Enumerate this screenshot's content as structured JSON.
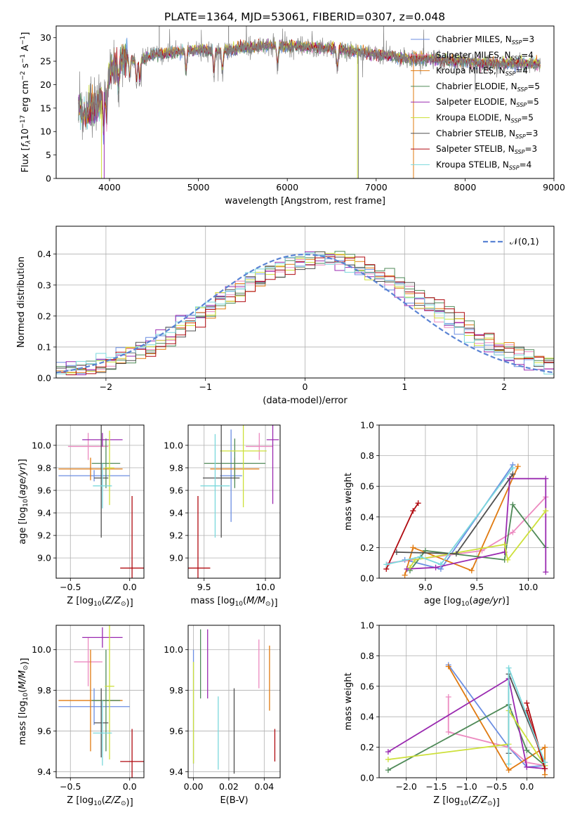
{
  "figure_title": "PLATE=1364, MJD=53061, FIBERID=0307, z=0.048",
  "model_colors": [
    "#6b8ee2",
    "#ec8ac0",
    "#e07a10",
    "#4f8a58",
    "#9a2ab0",
    "#cde03a",
    "#505050",
    "#b00a10",
    "#7ad8dc"
  ],
  "legend": [
    "Chabrier MILES, N_SSP=3",
    "Salpeter MILES, N_SSP=4",
    "Kroupa MILES, N_SSP=4",
    "Chabrier ELODIE, N_SSP=5",
    "Salpeter ELODIE, N_SSP=5",
    "Kroupa ELODIE, N_SSP=5",
    "Chabrier STELIB, N_SSP=3",
    "Salpeter STELIB, N_SSP=3",
    "Kroupa STELIB, N_SSP=4"
  ],
  "chart_data": [
    {
      "id": "spectrum",
      "type": "line",
      "xlabel": "wavelength [Angstrom, rest frame]",
      "ylabel": "Flux [fλ10^-17 erg cm^-2 s^-1 A^-1]",
      "xlim": [
        3400,
        9000
      ],
      "ylim": [
        0,
        32.5
      ],
      "xticks": [
        4000,
        5000,
        6000,
        7000,
        8000,
        9000
      ],
      "yticks": [
        0,
        5,
        10,
        15,
        20,
        25,
        30
      ],
      "legend_position": "top-right",
      "data_envelope": {
        "wavelength": [
          3650,
          3700,
          3750,
          3800,
          3850,
          3900,
          3950,
          4000,
          4100,
          4200,
          4300,
          4400,
          4500,
          4600,
          4800,
          5000,
          5200,
          5400,
          5600,
          5800,
          6000,
          6200,
          6400,
          6600,
          6800,
          7000,
          7200,
          7400,
          7600,
          7800,
          8000,
          8200,
          8400,
          8600,
          8800
        ],
        "flux": [
          16,
          13,
          14,
          15,
          14.5,
          16,
          19,
          23,
          25,
          26,
          25,
          25.5,
          26.5,
          26.5,
          27,
          27.5,
          27,
          27.5,
          28,
          28.2,
          28.2,
          28,
          27.8,
          27.5,
          27,
          26.5,
          26,
          25.5,
          25.5,
          25,
          25,
          24.5,
          24.5,
          24.5,
          24.5
        ]
      }
    },
    {
      "id": "residual-histogram",
      "type": "histogram",
      "xlabel": "(data-model)/error",
      "ylabel": "Normed distribution",
      "xlim": [
        -2.5,
        2.5
      ],
      "ylim": [
        0,
        0.49
      ],
      "xticks": [
        -2,
        -1,
        0,
        1,
        2
      ],
      "yticks": [
        0.0,
        0.1,
        0.2,
        0.3,
        0.4
      ],
      "legend": "𝒩(0,1)",
      "legend_position": "top-right",
      "bin_width": 0.1,
      "reference_curve": "normal(0,1)"
    },
    {
      "id": "age-vs-Z",
      "type": "errorbar",
      "xlabel": "Z [log10(Z/Z⊙)]",
      "ylabel": "age  [log10(age/yr)]",
      "xlim": [
        -0.62,
        0.12
      ],
      "ylim": [
        8.82,
        10.18
      ],
      "xticks": [
        -0.5,
        0.0
      ],
      "yticks": [
        9.0,
        9.2,
        9.4,
        9.6,
        9.8,
        10.0
      ],
      "points": [
        {
          "x": -0.3,
          "y": 9.73,
          "xerr": 0.3,
          "yerr": 0.05
        },
        {
          "x": -0.35,
          "y": 9.99,
          "xerr": 0.17,
          "yerr": 0.12
        },
        {
          "x": -0.33,
          "y": 9.79,
          "xerr": 0.27,
          "yerr": 0.1
        },
        {
          "x": -0.2,
          "y": 9.84,
          "xerr": 0.12,
          "yerr": 0.22
        },
        {
          "x": -0.23,
          "y": 10.05,
          "xerr": 0.17,
          "yerr": 0.06
        },
        {
          "x": -0.17,
          "y": 9.8,
          "xerr": 0.04,
          "yerr": 0.33
        },
        {
          "x": -0.24,
          "y": 9.71,
          "xerr": 0.06,
          "yerr": 0.53
        },
        {
          "x": 0.02,
          "y": 8.91,
          "xerr": 0.1,
          "yerr": 0.64
        },
        {
          "x": -0.23,
          "y": 9.64,
          "xerr": 0.08,
          "yerr": 0.2
        }
      ]
    },
    {
      "id": "age-vs-mass",
      "type": "errorbar",
      "xlabel": "mass [log10(M/M⊙)]",
      "ylabel": "",
      "xlim": [
        9.37,
        10.12
      ],
      "ylim": [
        8.82,
        10.18
      ],
      "xticks": [
        9.5,
        10.0
      ],
      "yticks": [
        9.0,
        9.2,
        9.4,
        9.6,
        9.8,
        10.0
      ],
      "points": [
        {
          "x": 9.72,
          "y": 9.73,
          "xerr": 0.09,
          "yerr": 0.41
        },
        {
          "x": 9.95,
          "y": 9.99,
          "xerr": 0.11,
          "yerr": 0.12
        },
        {
          "x": 9.75,
          "y": 9.79,
          "xerr": 0.2,
          "yerr": 0.1
        },
        {
          "x": 9.75,
          "y": 9.84,
          "xerr": 0.25,
          "yerr": 0.22
        },
        {
          "x": 10.06,
          "y": 10.05,
          "xerr": 0.05,
          "yerr": 0.57
        },
        {
          "x": 9.82,
          "y": 9.95,
          "xerr": 0.19,
          "yerr": 0.5
        },
        {
          "x": 9.64,
          "y": 9.71,
          "xerr": 0.15,
          "yerr": 0.53
        },
        {
          "x": 9.45,
          "y": 8.91,
          "xerr": 0.1,
          "yerr": 0.64
        },
        {
          "x": 9.59,
          "y": 9.64,
          "xerr": 0.12,
          "yerr": 0.46
        }
      ]
    },
    {
      "id": "massweight-vs-age",
      "type": "line",
      "xlabel": "age  [log10(age/yr)]",
      "ylabel": "mass weight",
      "xlim": [
        8.55,
        10.25
      ],
      "ylim": [
        0,
        1.0
      ],
      "xticks": [
        9.0,
        9.5,
        10.0
      ],
      "yticks": [
        0.0,
        0.2,
        0.4,
        0.6,
        0.8,
        1.0
      ],
      "grid": true,
      "series": [
        {
          "x": [
            8.8,
            9.15,
            9.85
          ],
          "y": [
            0.12,
            0.06,
            0.74
          ]
        },
        {
          "x": [
            8.65,
            9.55,
            9.85,
            10.17
          ],
          "y": [
            0.1,
            0.18,
            0.3,
            0.53
          ]
        },
        {
          "x": [
            8.8,
            8.88,
            9.45,
            9.9
          ],
          "y": [
            0.02,
            0.2,
            0.05,
            0.73
          ]
        },
        {
          "x": [
            8.85,
            9.0,
            9.77,
            9.85,
            10.17
          ],
          "y": [
            0.05,
            0.18,
            0.12,
            0.48,
            0.2
          ]
        },
        {
          "x": [
            8.82,
            9.1,
            9.77,
            9.82,
            10.17,
            10.17
          ],
          "y": [
            0.06,
            0.07,
            0.17,
            0.65,
            0.65,
            0.04
          ]
        },
        {
          "x": [
            8.85,
            8.9,
            9.77,
            9.8,
            10.17
          ],
          "y": [
            0.07,
            0.12,
            0.22,
            0.12,
            0.44
          ]
        },
        {
          "x": [
            8.72,
            9.3,
            9.85
          ],
          "y": [
            0.17,
            0.16,
            0.68
          ]
        },
        {
          "x": [
            8.62,
            8.88,
            8.93
          ],
          "y": [
            0.06,
            0.44,
            0.49
          ]
        },
        {
          "x": [
            8.62,
            8.95,
            9.15,
            9.85
          ],
          "y": [
            0.09,
            0.14,
            0.09,
            0.72
          ]
        }
      ]
    },
    {
      "id": "mass-vs-Z",
      "type": "errorbar",
      "xlabel": "Z [log10(Z/Z⊙)]",
      "ylabel": "mass [log10(M/M⊙)]",
      "xlim": [
        -0.62,
        0.12
      ],
      "ylim": [
        9.37,
        10.12
      ],
      "xticks": [
        -0.5,
        0.0
      ],
      "yticks": [
        9.4,
        9.6,
        9.8,
        10.0
      ],
      "points": [
        {
          "x": -0.3,
          "y": 9.72,
          "xerr": 0.3,
          "yerr": 0.09
        },
        {
          "x": -0.35,
          "y": 9.94,
          "xerr": 0.12,
          "yerr": 0.12
        },
        {
          "x": -0.33,
          "y": 9.75,
          "xerr": 0.27,
          "yerr": 0.25
        },
        {
          "x": -0.2,
          "y": 9.75,
          "xerr": 0.12,
          "yerr": 0.25
        },
        {
          "x": -0.23,
          "y": 10.06,
          "xerr": 0.17,
          "yerr": 0.05
        },
        {
          "x": -0.17,
          "y": 9.82,
          "xerr": 0.04,
          "yerr": 0.36
        },
        {
          "x": -0.24,
          "y": 9.64,
          "xerr": 0.06,
          "yerr": 0.17
        },
        {
          "x": 0.02,
          "y": 9.45,
          "xerr": 0.1,
          "yerr": 0.16
        },
        {
          "x": -0.23,
          "y": 9.59,
          "xerr": 0.08,
          "yerr": 0.16
        }
      ]
    },
    {
      "id": "mass-vs-ebv",
      "type": "errorbar",
      "xlabel": "E(B-V)",
      "ylabel": "",
      "xlim": [
        -0.003,
        0.049
      ],
      "ylim": [
        9.37,
        10.12
      ],
      "xticks": [
        0.0,
        0.02,
        0.04
      ],
      "yticks": [
        9.4,
        9.6,
        9.8,
        10.0
      ],
      "points": [
        {
          "x": 0.0,
          "y": 9.72,
          "xerr": 0.0,
          "yerr": 0.28
        },
        {
          "x": 0.037,
          "y": 9.93,
          "xerr": 0.0,
          "yerr": 0.12
        },
        {
          "x": 0.043,
          "y": 9.86,
          "xerr": 0.0,
          "yerr": 0.16
        },
        {
          "x": 0.004,
          "y": 9.93,
          "xerr": 0.0,
          "yerr": 0.17
        },
        {
          "x": 0.008,
          "y": 9.93,
          "xerr": 0.0,
          "yerr": 0.17
        },
        {
          "x": 0.0,
          "y": 9.69,
          "xerr": 0.0,
          "yerr": 0.25
        },
        {
          "x": 0.023,
          "y": 9.6,
          "xerr": 0.0,
          "yerr": 0.21
        },
        {
          "x": 0.046,
          "y": 9.53,
          "xerr": 0.0,
          "yerr": 0.08
        },
        {
          "x": 0.014,
          "y": 9.59,
          "xerr": 0.0,
          "yerr": 0.18
        }
      ]
    },
    {
      "id": "massweight-vs-Z",
      "type": "line",
      "xlabel": "Z [log10(Z/Z⊙)]",
      "ylabel": "mass weight",
      "xlim": [
        -2.45,
        0.45
      ],
      "ylim": [
        0,
        1.0
      ],
      "xticks": [
        -2.0,
        -1.5,
        -1.0,
        -0.5,
        0.0
      ],
      "yticks": [
        0.0,
        0.2,
        0.4,
        0.6,
        0.8,
        1.0
      ],
      "grid": true,
      "series": [
        {
          "x": [
            -1.3,
            -0.3,
            0.0,
            0.3
          ],
          "y": [
            0.74,
            0.2,
            0.07,
            0.08
          ]
        },
        {
          "x": [
            -1.3,
            -1.3,
            -0.3,
            0.0,
            0.3
          ],
          "y": [
            0.53,
            0.3,
            0.2,
            0.1,
            0.08
          ]
        },
        {
          "x": [
            -1.3,
            -0.3,
            0.3,
            0.3
          ],
          "y": [
            0.73,
            0.05,
            0.2,
            0.02
          ]
        },
        {
          "x": [
            -2.3,
            -0.3,
            0.0,
            0.3
          ],
          "y": [
            0.05,
            0.48,
            0.18,
            0.08
          ]
        },
        {
          "x": [
            -2.3,
            -0.3,
            0.0,
            0.3
          ],
          "y": [
            0.17,
            0.65,
            0.07,
            0.06
          ]
        },
        {
          "x": [
            -2.3,
            -0.3,
            -0.3,
            0.3
          ],
          "y": [
            0.12,
            0.22,
            0.44,
            0.08
          ]
        },
        {
          "x": [
            -0.3,
            -0.3,
            0.3
          ],
          "y": [
            0.16,
            0.68,
            0.1
          ]
        },
        {
          "x": [
            0.0,
            0.3,
            0.0
          ],
          "y": [
            0.49,
            0.06,
            0.44
          ]
        },
        {
          "x": [
            -0.3,
            -0.3,
            0.3
          ],
          "y": [
            0.09,
            0.72,
            0.1
          ]
        }
      ]
    }
  ]
}
